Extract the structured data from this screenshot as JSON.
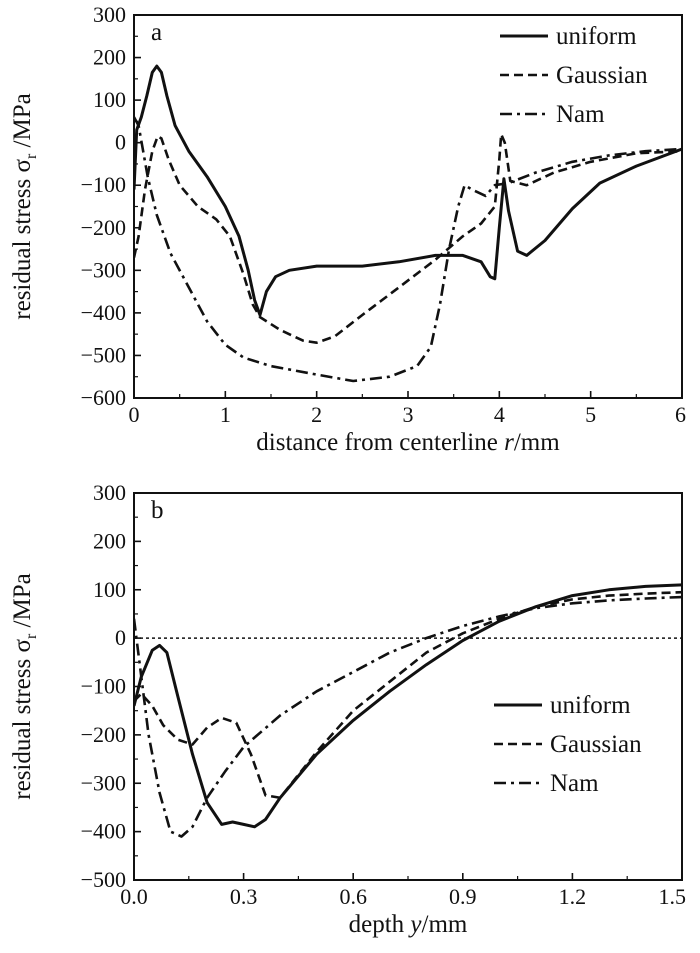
{
  "chart_data": [
    {
      "type": "line",
      "panel_label": "a",
      "xlabel_parts": [
        "distance from centerline ",
        "r",
        "/mm"
      ],
      "ylabel_parts": [
        "residual stress σ",
        "r",
        " /MPa"
      ],
      "xlim": [
        0,
        6
      ],
      "ylim": [
        -600,
        300
      ],
      "xticks": [
        0,
        1,
        2,
        3,
        4,
        5,
        6
      ],
      "yticks": [
        300,
        200,
        100,
        0,
        -100,
        -200,
        -300,
        -400,
        -500,
        -600
      ],
      "xtick_labels": [
        "0",
        "1",
        "2",
        "3",
        "4",
        "5",
        "6"
      ],
      "ytick_labels": [
        "300",
        "200",
        "100",
        "0",
        "−100",
        "−200",
        "−300",
        "−400",
        "−500",
        "−600"
      ],
      "legend_position": "top-right",
      "series": [
        {
          "name": "uniform",
          "style": "solid",
          "points": [
            [
              0,
              -110
            ],
            [
              0.03,
              30
            ],
            [
              0.08,
              60
            ],
            [
              0.14,
              110
            ],
            [
              0.2,
              165
            ],
            [
              0.25,
              180
            ],
            [
              0.3,
              165
            ],
            [
              0.36,
              110
            ],
            [
              0.45,
              40
            ],
            [
              0.6,
              -20
            ],
            [
              0.8,
              -80
            ],
            [
              1.0,
              -150
            ],
            [
              1.15,
              -220
            ],
            [
              1.25,
              -300
            ],
            [
              1.32,
              -370
            ],
            [
              1.38,
              -405
            ],
            [
              1.45,
              -350
            ],
            [
              1.55,
              -315
            ],
            [
              1.7,
              -300
            ],
            [
              2.0,
              -290
            ],
            [
              2.5,
              -290
            ],
            [
              2.9,
              -280
            ],
            [
              3.3,
              -265
            ],
            [
              3.6,
              -265
            ],
            [
              3.8,
              -280
            ],
            [
              3.9,
              -315
            ],
            [
              3.95,
              -320
            ],
            [
              4.0,
              -200
            ],
            [
              4.05,
              -85
            ],
            [
              4.1,
              -160
            ],
            [
              4.2,
              -255
            ],
            [
              4.3,
              -265
            ],
            [
              4.5,
              -230
            ],
            [
              4.8,
              -155
            ],
            [
              5.1,
              -95
            ],
            [
              5.5,
              -55
            ],
            [
              6.0,
              -15
            ]
          ]
        },
        {
          "name": "Gaussian",
          "style": "dashed",
          "points": [
            [
              0,
              -270
            ],
            [
              0.05,
              -220
            ],
            [
              0.12,
              -110
            ],
            [
              0.2,
              -20
            ],
            [
              0.26,
              15
            ],
            [
              0.3,
              10
            ],
            [
              0.38,
              -40
            ],
            [
              0.5,
              -100
            ],
            [
              0.7,
              -150
            ],
            [
              0.9,
              -180
            ],
            [
              1.05,
              -220
            ],
            [
              1.2,
              -310
            ],
            [
              1.3,
              -380
            ],
            [
              1.38,
              -410
            ],
            [
              1.6,
              -440
            ],
            [
              1.85,
              -465
            ],
            [
              2.0,
              -470
            ],
            [
              2.2,
              -455
            ],
            [
              2.5,
              -405
            ],
            [
              2.9,
              -340
            ],
            [
              3.3,
              -275
            ],
            [
              3.6,
              -220
            ],
            [
              3.8,
              -190
            ],
            [
              3.95,
              -150
            ],
            [
              4.0,
              -40
            ],
            [
              4.02,
              20
            ],
            [
              4.06,
              0
            ],
            [
              4.12,
              -90
            ],
            [
              4.3,
              -100
            ],
            [
              4.6,
              -70
            ],
            [
              5.0,
              -45
            ],
            [
              5.5,
              -25
            ],
            [
              6.0,
              -20
            ]
          ]
        },
        {
          "name": "Nam",
          "style": "dashdot",
          "points": [
            [
              0,
              60
            ],
            [
              0.05,
              40
            ],
            [
              0.15,
              -80
            ],
            [
              0.25,
              -170
            ],
            [
              0.4,
              -260
            ],
            [
              0.6,
              -340
            ],
            [
              0.8,
              -420
            ],
            [
              1.0,
              -475
            ],
            [
              1.2,
              -505
            ],
            [
              1.5,
              -525
            ],
            [
              2.0,
              -545
            ],
            [
              2.4,
              -560
            ],
            [
              2.8,
              -550
            ],
            [
              3.1,
              -525
            ],
            [
              3.25,
              -480
            ],
            [
              3.35,
              -380
            ],
            [
              3.45,
              -250
            ],
            [
              3.55,
              -150
            ],
            [
              3.62,
              -100
            ],
            [
              3.7,
              -110
            ],
            [
              3.85,
              -125
            ],
            [
              3.95,
              -100
            ],
            [
              4.1,
              -95
            ],
            [
              4.4,
              -70
            ],
            [
              4.8,
              -45
            ],
            [
              5.2,
              -30
            ],
            [
              5.6,
              -20
            ],
            [
              6.0,
              -15
            ]
          ]
        }
      ]
    },
    {
      "type": "line",
      "panel_label": "b",
      "xlabel_parts": [
        "depth ",
        "y",
        "/mm"
      ],
      "ylabel_parts": [
        "residual stress σ",
        "r",
        " /MPa"
      ],
      "xlim": [
        0.0,
        1.5
      ],
      "ylim": [
        -500,
        300
      ],
      "xticks": [
        0.0,
        0.3,
        0.6,
        0.9,
        1.2,
        1.5
      ],
      "yticks": [
        300,
        200,
        100,
        0,
        -100,
        -200,
        -300,
        -400,
        -500
      ],
      "xtick_labels": [
        "0.0",
        "0.3",
        "0.6",
        "0.9",
        "1.2",
        "1.5"
      ],
      "ytick_labels": [
        "300",
        "200",
        "100",
        "0",
        "−100",
        "−200",
        "−300",
        "−400",
        "−500"
      ],
      "zero_reference_line": true,
      "legend_position": "center-right",
      "series": [
        {
          "name": "uniform",
          "style": "solid",
          "points": [
            [
              0,
              -140
            ],
            [
              0.02,
              -80
            ],
            [
              0.05,
              -25
            ],
            [
              0.07,
              -15
            ],
            [
              0.09,
              -30
            ],
            [
              0.12,
              -120
            ],
            [
              0.16,
              -240
            ],
            [
              0.2,
              -340
            ],
            [
              0.24,
              -385
            ],
            [
              0.27,
              -380
            ],
            [
              0.3,
              -385
            ],
            [
              0.33,
              -390
            ],
            [
              0.36,
              -375
            ],
            [
              0.4,
              -330
            ],
            [
              0.5,
              -240
            ],
            [
              0.6,
              -170
            ],
            [
              0.7,
              -110
            ],
            [
              0.8,
              -55
            ],
            [
              0.9,
              -5
            ],
            [
              1.0,
              35
            ],
            [
              1.1,
              65
            ],
            [
              1.2,
              88
            ],
            [
              1.3,
              100
            ],
            [
              1.4,
              107
            ],
            [
              1.5,
              110
            ]
          ]
        },
        {
          "name": "Gaussian",
          "style": "dashed",
          "points": [
            [
              0,
              -130
            ],
            [
              0.02,
              -115
            ],
            [
              0.05,
              -140
            ],
            [
              0.08,
              -180
            ],
            [
              0.12,
              -210
            ],
            [
              0.16,
              -220
            ],
            [
              0.2,
              -185
            ],
            [
              0.24,
              -165
            ],
            [
              0.28,
              -175
            ],
            [
              0.32,
              -240
            ],
            [
              0.36,
              -325
            ],
            [
              0.4,
              -330
            ],
            [
              0.5,
              -235
            ],
            [
              0.6,
              -150
            ],
            [
              0.7,
              -90
            ],
            [
              0.8,
              -30
            ],
            [
              0.9,
              10
            ],
            [
              1.0,
              40
            ],
            [
              1.1,
              65
            ],
            [
              1.2,
              80
            ],
            [
              1.3,
              88
            ],
            [
              1.4,
              92
            ],
            [
              1.5,
              95
            ]
          ]
        },
        {
          "name": "Nam",
          "style": "dashdot",
          "points": [
            [
              0,
              40
            ],
            [
              0.02,
              -80
            ],
            [
              0.04,
              -200
            ],
            [
              0.07,
              -320
            ],
            [
              0.1,
              -400
            ],
            [
              0.13,
              -410
            ],
            [
              0.16,
              -390
            ],
            [
              0.2,
              -330
            ],
            [
              0.25,
              -275
            ],
            [
              0.3,
              -225
            ],
            [
              0.4,
              -160
            ],
            [
              0.5,
              -110
            ],
            [
              0.6,
              -70
            ],
            [
              0.7,
              -30
            ],
            [
              0.8,
              0
            ],
            [
              0.9,
              25
            ],
            [
              1.0,
              45
            ],
            [
              1.1,
              62
            ],
            [
              1.2,
              72
            ],
            [
              1.3,
              78
            ],
            [
              1.4,
              82
            ],
            [
              1.5,
              85
            ]
          ]
        }
      ]
    }
  ]
}
